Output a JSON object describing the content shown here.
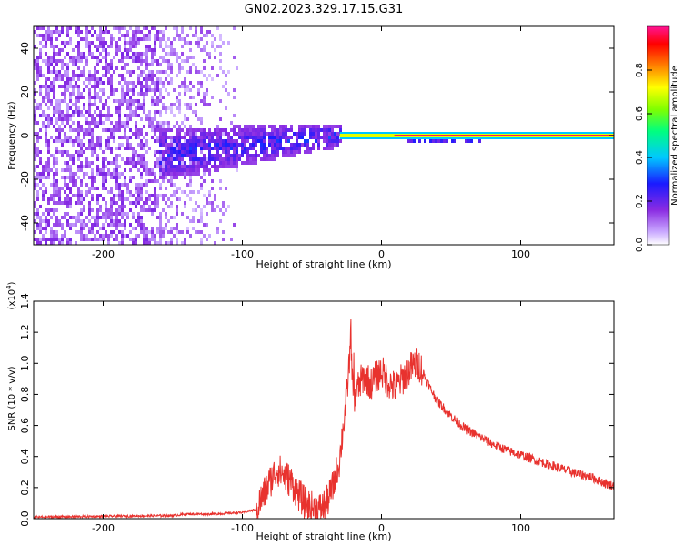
{
  "title": "GN02.2023.329.17.15.G31",
  "colors": {
    "snr_line": "#e8322e",
    "tone_line": "#ff1a55",
    "frame": "#000000"
  },
  "chart_data": [
    {
      "id": "spectrogram",
      "type": "heatmap",
      "xlabel": "Height of straight line (km)",
      "ylabel": "Frequency (Hz)",
      "xlim": [
        -250,
        167
      ],
      "ylim": [
        -50,
        50
      ],
      "xticks": [
        -200,
        -100,
        0,
        100
      ],
      "yticks": [
        -40,
        -20,
        0,
        20,
        40
      ],
      "colorbar": {
        "label": "Normalized spectral amplitude",
        "range": [
          0,
          1
        ],
        "ticks": [
          "0.0",
          "0.2",
          "0.4",
          "0.6",
          "0.8"
        ],
        "colormap": "rainbow (white-purple-blue-cyan-green-yellow-red-magenta)"
      },
      "features": {
        "noise_region_x": [
          -250,
          -100
        ],
        "scatter_band_x": [
          -160,
          -30
        ],
        "scatter_band_freq_hz": [
          -25,
          10
        ],
        "carrier_start_x": -30,
        "carrier_freq_hz": 0,
        "carrier_normalized_amplitude": 1.0,
        "grid": false
      }
    },
    {
      "id": "snr",
      "type": "line",
      "xlabel": "Height of straight line (km)",
      "ylabel": "SNR (10 * v/v)",
      "yscale_label_base": "(x10",
      "yscale_label_exp": "4",
      "yscale_label_close": ")",
      "xlim": [
        -250,
        167
      ],
      "ylim": [
        0,
        1.4
      ],
      "xticks": [
        -200,
        -100,
        0,
        100
      ],
      "yticks": [
        "0.0",
        "0.2",
        "0.4",
        "0.6",
        "0.8",
        "1.0",
        "1.2",
        "1.4"
      ],
      "grid": false,
      "series": [
        {
          "x": [
            -250,
            -200,
            -150,
            -140,
            -120,
            -100,
            -90,
            -85,
            -80,
            -75,
            -70,
            -65,
            -60,
            -55,
            -50,
            -45,
            -40,
            -35,
            -30,
            -28,
            -25,
            -22,
            -20,
            -18,
            -15,
            -12,
            -10,
            -8,
            -5,
            -2,
            0,
            5,
            10,
            15,
            20,
            25,
            28,
            30,
            35,
            40,
            50,
            60,
            70,
            80,
            90,
            100,
            110,
            120,
            130,
            140,
            150,
            160,
            167
          ],
          "y": [
            0.01,
            0.015,
            0.02,
            0.03,
            0.03,
            0.04,
            0.06,
            0.15,
            0.24,
            0.32,
            0.28,
            0.24,
            0.16,
            0.1,
            0.07,
            0.06,
            0.09,
            0.2,
            0.38,
            0.55,
            0.78,
            1.15,
            0.76,
            0.82,
            0.88,
            0.92,
            0.9,
            0.86,
            0.9,
            0.93,
            0.95,
            0.88,
            0.84,
            0.9,
            0.96,
            1.0,
            0.98,
            0.94,
            0.84,
            0.76,
            0.66,
            0.58,
            0.53,
            0.48,
            0.44,
            0.41,
            0.38,
            0.35,
            0.32,
            0.29,
            0.27,
            0.23,
            0.21
          ]
        }
      ]
    }
  ]
}
